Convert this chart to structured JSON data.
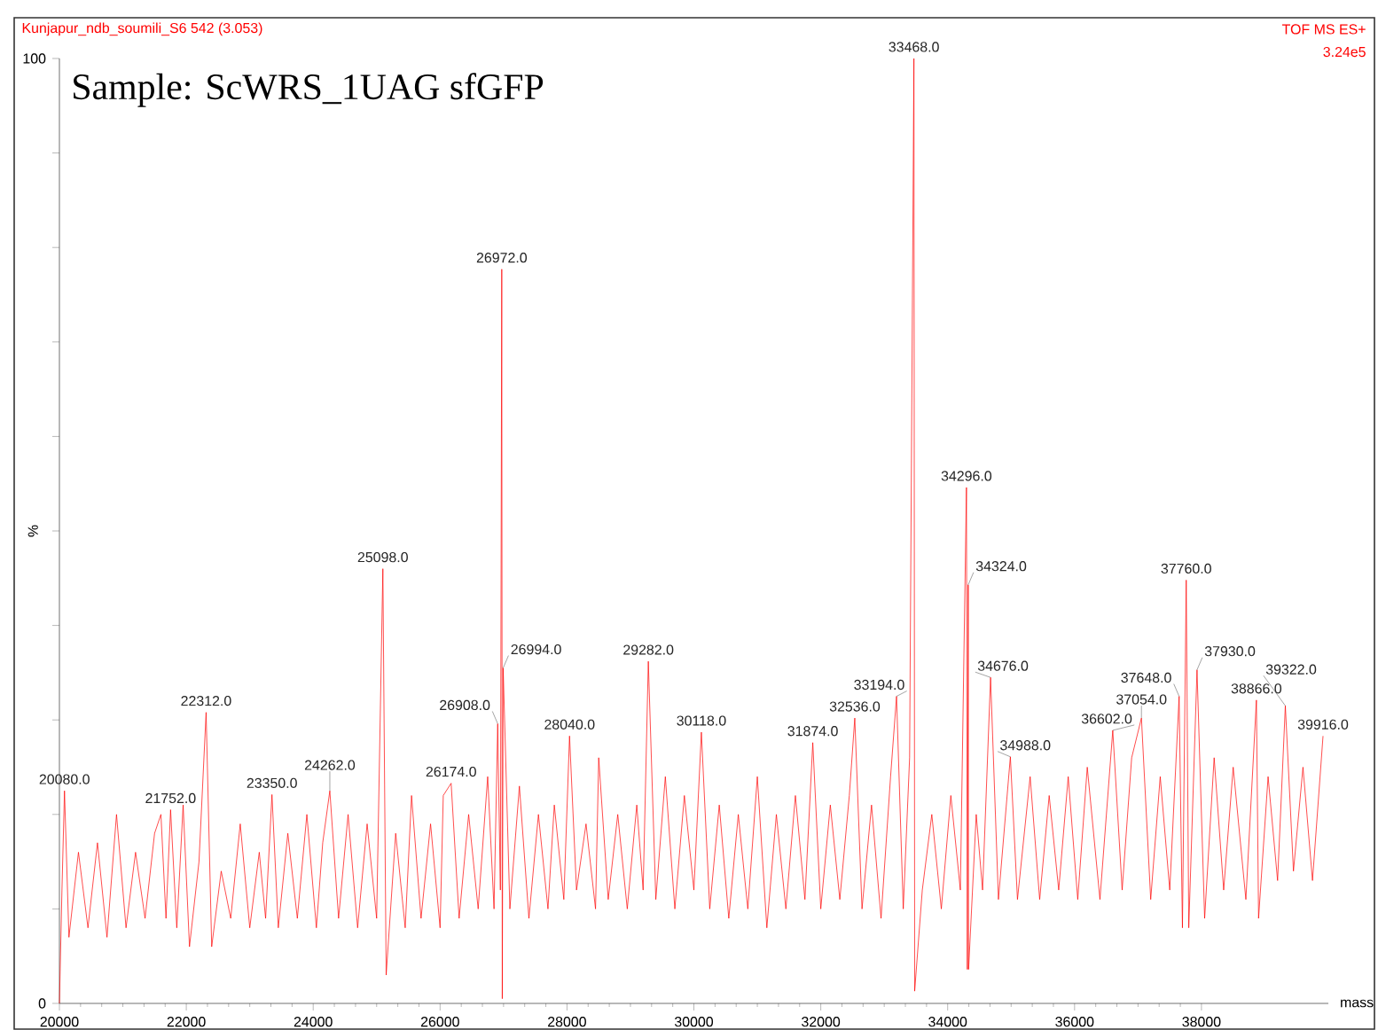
{
  "chart_data": {
    "type": "line",
    "title": "Sample: ScWRS_1UAG sfGFP",
    "xlabel": "mass",
    "ylabel": "%",
    "color": "#ff0000",
    "xlim": [
      20000,
      40000
    ],
    "ylim": [
      0,
      100
    ],
    "xticks": [
      20000,
      22000,
      24000,
      26000,
      28000,
      30000,
      32000,
      34000,
      36000,
      38000
    ],
    "yticks": [
      0,
      {
        "value": 10,
        "label": null
      },
      {
        "value": 20,
        "label": null
      },
      {
        "value": 30,
        "label": null
      },
      {
        "value": 40,
        "label": null
      },
      {
        "value": 50,
        "label": null
      },
      {
        "value": 60,
        "label": null
      },
      {
        "value": 70,
        "label": null
      },
      {
        "value": 80,
        "label": null
      },
      {
        "value": 90,
        "label": null
      },
      100
    ],
    "x": [
      20000,
      20040,
      20080,
      20150,
      20300,
      20450,
      20600,
      20750,
      20900,
      21050,
      21200,
      21350,
      21500,
      21600,
      21680,
      21752,
      21850,
      21950,
      22050,
      22200,
      22312,
      22400,
      22550,
      22700,
      22850,
      23000,
      23150,
      23250,
      23350,
      23450,
      23600,
      23750,
      23900,
      24050,
      24150,
      24262,
      24400,
      24550,
      24700,
      24850,
      25000,
      25098,
      25150,
      25300,
      25450,
      25550,
      25700,
      25850,
      26000,
      26050,
      26174,
      26300,
      26450,
      26600,
      26750,
      26850,
      26908,
      26950,
      26972,
      26980,
      26994,
      27100,
      27250,
      27400,
      27550,
      27700,
      27800,
      27950,
      28040,
      28150,
      28300,
      28450,
      28500,
      28650,
      28800,
      28950,
      29100,
      29200,
      29282,
      29400,
      29550,
      29700,
      29850,
      30000,
      30118,
      30250,
      30400,
      30550,
      30700,
      30850,
      31000,
      31150,
      31300,
      31450,
      31600,
      31750,
      31874,
      32000,
      32150,
      32300,
      32450,
      32536,
      32650,
      32800,
      32950,
      33100,
      33194,
      33300,
      33400,
      33468,
      33480,
      33600,
      33750,
      33900,
      34050,
      34200,
      34296,
      34310,
      34324,
      34330,
      34450,
      34550,
      34676,
      34800,
      34988,
      35100,
      35300,
      35450,
      35600,
      35750,
      35900,
      36050,
      36200,
      36400,
      36602,
      36750,
      36900,
      37054,
      37200,
      37350,
      37500,
      37648,
      37700,
      37760,
      37800,
      37930,
      38050,
      38200,
      38350,
      38500,
      38700,
      38866,
      38900,
      39050,
      39200,
      39322,
      39450,
      39600,
      39750,
      39916
    ],
    "values": [
      0,
      12,
      22.5,
      7,
      16,
      8,
      17,
      7,
      20,
      8,
      16,
      9,
      18,
      20,
      9,
      20.5,
      8,
      21,
      6,
      15,
      30.8,
      6,
      14,
      9,
      19,
      8,
      16,
      9,
      22.1,
      8,
      18,
      9,
      20,
      8,
      17,
      22.5,
      9,
      20,
      8,
      19,
      9,
      46.0,
      3,
      18,
      8,
      22,
      9,
      19,
      8,
      22,
      23.3,
      9,
      20,
      10,
      24,
      10,
      29.6,
      12,
      77.7,
      0.5,
      35.5,
      10,
      23,
      9,
      20,
      10,
      21,
      11,
      28.3,
      12,
      19,
      10,
      26,
      11,
      20,
      10,
      21,
      12,
      36.2,
      11,
      24,
      10,
      22,
      12,
      28.7,
      10,
      21,
      9,
      20,
      10,
      24,
      8,
      20,
      10,
      22,
      11,
      27.6,
      10,
      21,
      11,
      22,
      30.2,
      10,
      21,
      9,
      24,
      32.5,
      10,
      26,
      100,
      1.3,
      12,
      20,
      10,
      22,
      12,
      54.6,
      3.6,
      44.3,
      3.6,
      20,
      12,
      34.5,
      11,
      26.1,
      11,
      24,
      11,
      22,
      12,
      24,
      11,
      25,
      11,
      28.9,
      12,
      26,
      30.2,
      11,
      24,
      12,
      32.5,
      8,
      44.8,
      8,
      35.3,
      9,
      26,
      12,
      25,
      11,
      32.1,
      9,
      24,
      13,
      31.5,
      14,
      25,
      13,
      28.3
    ],
    "annotations": [
      "Kunjapur_ndb_soumili_S6  542 (3.053)",
      "TOF MS ES+",
      "3.24e5",
      {
        "text": "20080.0",
        "x": 20080,
        "y": 22.5
      },
      {
        "text": "21752.0",
        "x": 21752,
        "y": 20.5
      },
      {
        "text": "22312.0",
        "x": 22312,
        "y": 30.8
      },
      {
        "text": "23350.0",
        "x": 23350,
        "y": 22.1
      },
      {
        "text": "24262.0",
        "x": 24262,
        "y": 22.5
      },
      {
        "text": "25098.0",
        "x": 25098,
        "y": 46.0
      },
      {
        "text": "26174.0",
        "x": 26174,
        "y": 23.3
      },
      {
        "text": "26908.0",
        "x": 26908,
        "y": 29.6
      },
      {
        "text": "26972.0",
        "x": 26972,
        "y": 77.7
      },
      {
        "text": "26994.0",
        "x": 26994,
        "y": 35.5
      },
      {
        "text": "28040.0",
        "x": 28040,
        "y": 28.3
      },
      {
        "text": "29282.0",
        "x": 29282,
        "y": 36.2
      },
      {
        "text": "30118.0",
        "x": 30118,
        "y": 28.7
      },
      {
        "text": "31874.0",
        "x": 31874,
        "y": 27.6
      },
      {
        "text": "32536.0",
        "x": 32536,
        "y": 30.2
      },
      {
        "text": "33194.0",
        "x": 33194,
        "y": 32.5
      },
      {
        "text": "33468.0",
        "x": 33468,
        "y": 100
      },
      {
        "text": "34296.0",
        "x": 34296,
        "y": 54.6
      },
      {
        "text": "34324.0",
        "x": 34324,
        "y": 44.3
      },
      {
        "text": "34676.0",
        "x": 34676,
        "y": 34.5
      },
      {
        "text": "34988.0",
        "x": 34988,
        "y": 26.1
      },
      {
        "text": "36602.0",
        "x": 36602,
        "y": 28.9
      },
      {
        "text": "37054.0",
        "x": 37054,
        "y": 30.2
      },
      {
        "text": "37648.0",
        "x": 37648,
        "y": 32.5
      },
      {
        "text": "37760.0",
        "x": 37760,
        "y": 44.8
      },
      {
        "text": "37930.0",
        "x": 37930,
        "y": 35.3
      },
      {
        "text": "38866.0",
        "x": 38866,
        "y": 32.1
      },
      {
        "text": "39322.0",
        "x": 39322,
        "y": 31.5
      },
      {
        "text": "39916.0",
        "x": 39916,
        "y": 28.3
      }
    ]
  }
}
